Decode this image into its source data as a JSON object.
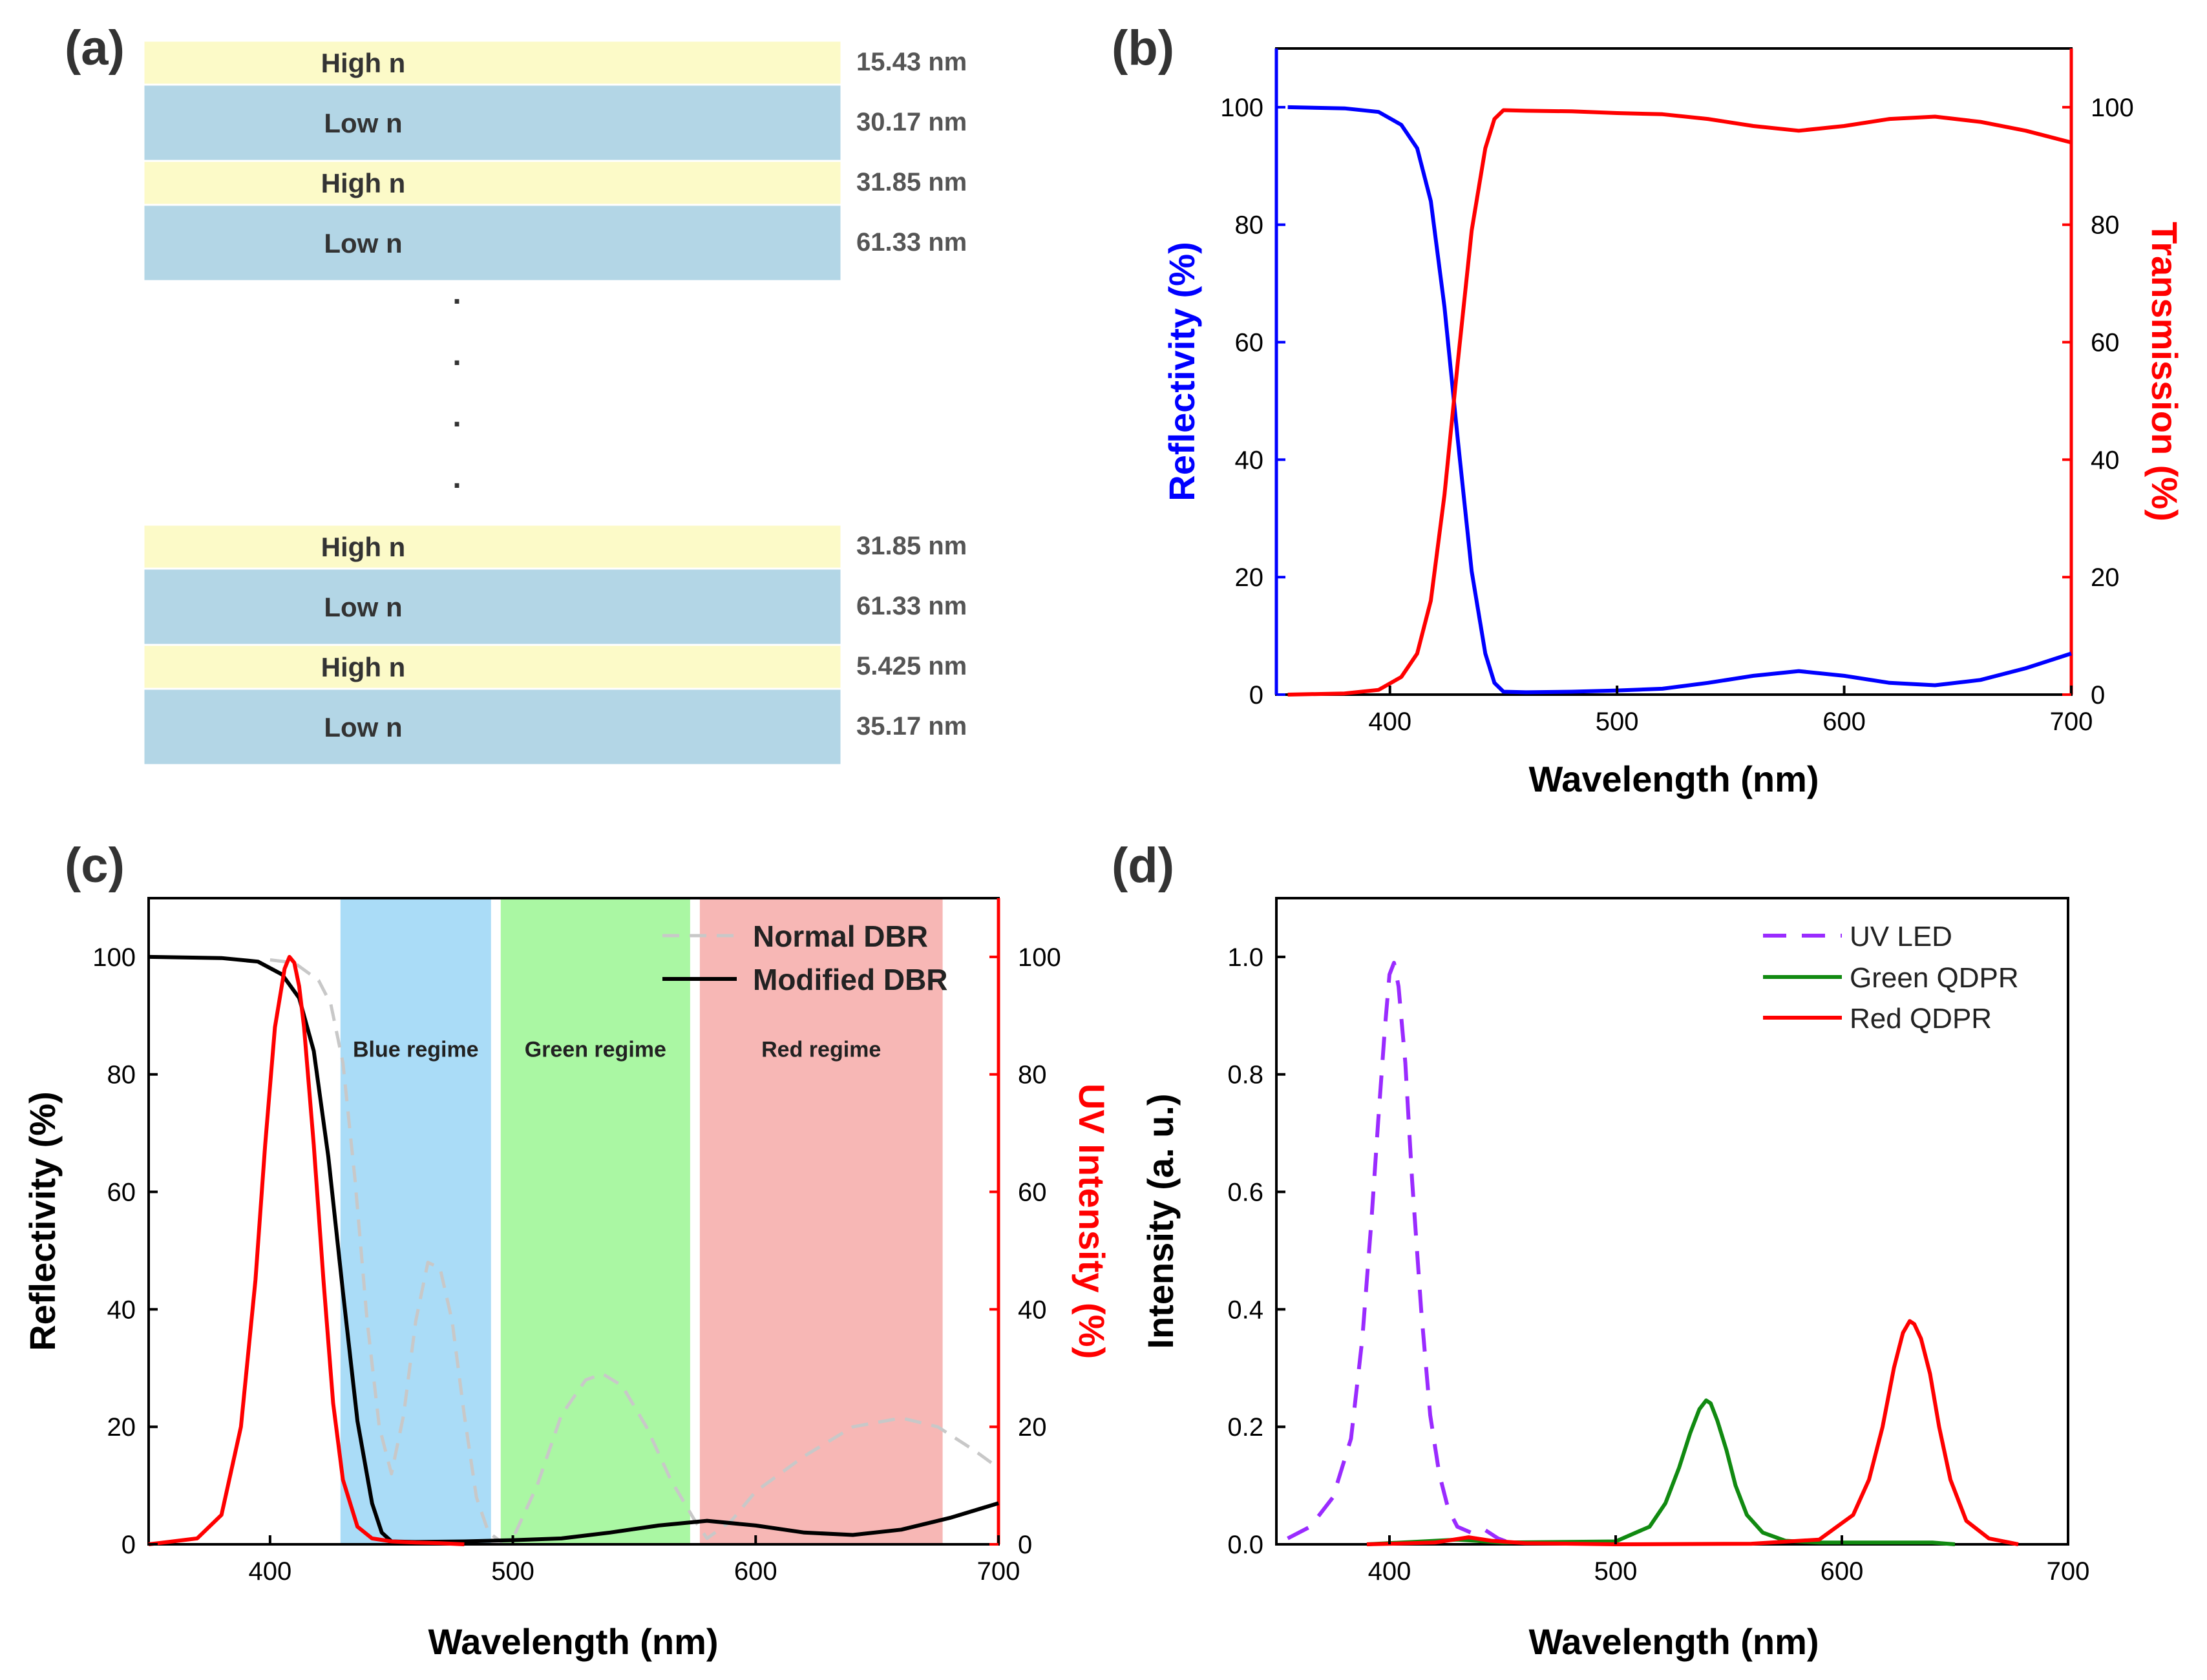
{
  "panels": {
    "a": {
      "label": "(a)",
      "top_layers": [
        {
          "name": "High n",
          "thickness": "15.43 nm",
          "type": "high"
        },
        {
          "name": "Low n",
          "thickness": "30.17 nm",
          "type": "low"
        },
        {
          "name": "High n",
          "thickness": "31.85 nm",
          "type": "high"
        },
        {
          "name": "Low n",
          "thickness": "61.33 nm",
          "type": "low"
        }
      ],
      "ellipsis": ".",
      "bottom_layers": [
        {
          "name": "High n",
          "thickness": "31.85 nm",
          "type": "high"
        },
        {
          "name": "Low n",
          "thickness": "61.33 nm",
          "type": "low"
        },
        {
          "name": "High n",
          "thickness": "5.425 nm",
          "type": "high"
        },
        {
          "name": "Low n",
          "thickness": "35.17 nm",
          "type": "low"
        }
      ],
      "colors": {
        "high": "#fcfac8",
        "low": "#b3d6e6"
      }
    }
  },
  "chart_data": [
    {
      "panel": "(b)",
      "type": "line",
      "xlabel": "Wavelength (nm)",
      "ylabel": "Reflectivity (%)",
      "y2label": "Transmission (%)",
      "xlim": [
        350,
        700
      ],
      "ylim": [
        0,
        110
      ],
      "y2lim": [
        0,
        110
      ],
      "xticks": [
        400,
        500,
        600,
        700
      ],
      "yticks": [
        0,
        20,
        40,
        60,
        80,
        100
      ],
      "y2ticks": [
        0,
        20,
        40,
        60,
        80,
        100
      ],
      "series": [
        {
          "name": "Reflectivity",
          "axis": "left",
          "color": "#0000ff",
          "x": [
            355,
            380,
            395,
            405,
            412,
            418,
            424,
            430,
            436,
            442,
            446,
            450,
            460,
            480,
            500,
            520,
            540,
            560,
            580,
            600,
            620,
            640,
            660,
            680,
            700
          ],
          "y": [
            100,
            99.8,
            99.2,
            97,
            93,
            84,
            66,
            43,
            21,
            7,
            2,
            0.5,
            0.4,
            0.5,
            0.7,
            1,
            2,
            3.2,
            4,
            3.2,
            2,
            1.6,
            2.5,
            4.5,
            7
          ]
        },
        {
          "name": "Transmission",
          "axis": "right",
          "color": "#ff0000",
          "x": [
            355,
            380,
            395,
            405,
            412,
            418,
            424,
            430,
            436,
            442,
            446,
            450,
            460,
            480,
            500,
            520,
            540,
            560,
            580,
            600,
            620,
            640,
            660,
            680,
            700
          ],
          "y": [
            0,
            0.2,
            0.8,
            3,
            7,
            16,
            34,
            57,
            79,
            93,
            98,
            99.5,
            99.4,
            99.3,
            99,
            98.8,
            98,
            96.8,
            96,
            96.8,
            98,
            98.4,
            97.5,
            96,
            94
          ]
        }
      ]
    },
    {
      "panel": "(c)",
      "type": "line",
      "xlabel": "Wavelength (nm)",
      "ylabel": "Reflectivity (%)",
      "y2label": "UV Intensity (%)",
      "xlim": [
        350,
        700
      ],
      "ylim": [
        0,
        110
      ],
      "y2lim": [
        0,
        110
      ],
      "xticks": [
        400,
        500,
        600,
        700
      ],
      "yticks": [
        0,
        20,
        40,
        60,
        80,
        100
      ],
      "y2ticks": [
        0,
        20,
        40,
        60,
        80,
        100
      ],
      "regimes": [
        {
          "label": "Blue regime",
          "x0": 429,
          "x1": 491,
          "color": "#aadcf7"
        },
        {
          "label": "Green regime",
          "x0": 495,
          "x1": 573,
          "color": "#aaf7a3"
        },
        {
          "label": "Red regime",
          "x0": 577,
          "x1": 677,
          "color": "#f7b7b5"
        }
      ],
      "legend": [
        "Normal DBR",
        "Modified DBR"
      ],
      "series": [
        {
          "name": "Normal DBR",
          "axis": "left",
          "color": "#c8c8c8",
          "dashed": true,
          "x": [
            400,
            410,
            420,
            425,
            430,
            435,
            440,
            445,
            450,
            455,
            460,
            465,
            470,
            475,
            480,
            485,
            490,
            495,
            500,
            510,
            520,
            530,
            537,
            545,
            555,
            565,
            575,
            580,
            590,
            600,
            620,
            640,
            660,
            675,
            690,
            700
          ],
          "y": [
            99.5,
            99,
            96,
            92,
            82,
            62,
            38,
            20,
            12,
            22,
            38,
            48,
            47,
            38,
            22,
            8,
            2,
            0.5,
            1,
            10,
            22,
            28,
            29,
            27,
            20,
            11,
            4,
            1,
            4,
            9,
            15,
            20,
            21.5,
            20,
            16,
            13
          ]
        },
        {
          "name": "Modified DBR",
          "axis": "left",
          "color": "#000000",
          "x": [
            350,
            380,
            395,
            405,
            412,
            418,
            424,
            430,
            436,
            442,
            446,
            450,
            460,
            480,
            500,
            520,
            540,
            560,
            580,
            600,
            620,
            640,
            660,
            680,
            700
          ],
          "y": [
            100,
            99.8,
            99.2,
            97,
            93,
            84,
            66,
            43,
            21,
            7,
            2,
            0.5,
            0.4,
            0.5,
            0.7,
            1,
            2,
            3.2,
            4,
            3.2,
            2,
            1.6,
            2.5,
            4.5,
            7
          ]
        },
        {
          "name": "UV LED",
          "axis": "right",
          "color": "#ff0000",
          "x": [
            350,
            370,
            380,
            388,
            394,
            398,
            402,
            406,
            408,
            410,
            412,
            414,
            418,
            422,
            426,
            430,
            436,
            442,
            450,
            460,
            470,
            480
          ],
          "y": [
            0,
            1,
            5,
            20,
            45,
            68,
            88,
            98,
            100,
            99,
            95,
            88,
            68,
            45,
            24,
            11,
            3,
            1,
            0.5,
            0.3,
            0.2,
            0
          ]
        }
      ]
    },
    {
      "panel": "(d)",
      "type": "line",
      "xlabel": "Wavelength (nm)",
      "ylabel": "Intensity (a. u.)",
      "xlim": [
        350,
        700
      ],
      "ylim": [
        0,
        1.1
      ],
      "xticks": [
        400,
        500,
        600,
        700
      ],
      "yticks": [
        0.0,
        0.2,
        0.4,
        0.6,
        0.8,
        1.0
      ],
      "ytick_labels": [
        "0.0",
        "0.2",
        "0.4",
        "0.6",
        "0.8",
        "1.0"
      ],
      "legend": [
        "UV LED",
        "Green QDPR",
        "Red QDPR"
      ],
      "series": [
        {
          "name": "UV LED",
          "color": "#9a2bff",
          "dashed": true,
          "x": [
            355,
            365,
            375,
            383,
            388,
            392,
            395,
            398,
            400,
            402,
            404,
            407,
            410,
            414,
            418,
            422,
            426,
            430,
            436,
            442,
            448,
            455
          ],
          "y": [
            0.01,
            0.03,
            0.08,
            0.18,
            0.35,
            0.55,
            0.72,
            0.88,
            0.97,
            0.99,
            0.95,
            0.82,
            0.62,
            0.4,
            0.22,
            0.12,
            0.06,
            0.03,
            0.02,
            0.025,
            0.01,
            0
          ]
        },
        {
          "name": "Green QDPR",
          "color": "#118a11",
          "x": [
            390,
            430,
            450,
            500,
            515,
            522,
            528,
            533,
            537,
            540,
            542,
            545,
            549,
            553,
            558,
            565,
            575,
            590,
            610,
            640,
            650
          ],
          "y": [
            0,
            0.008,
            0.003,
            0.005,
            0.03,
            0.07,
            0.13,
            0.19,
            0.23,
            0.245,
            0.24,
            0.21,
            0.16,
            0.1,
            0.05,
            0.02,
            0.006,
            0.003,
            0.003,
            0.003,
            0
          ]
        },
        {
          "name": "Red QDPR",
          "color": "#ff0000",
          "x": [
            390,
            420,
            435,
            445,
            460,
            500,
            560,
            590,
            605,
            612,
            618,
            623,
            627,
            630,
            632,
            635,
            639,
            643,
            648,
            655,
            665,
            678
          ],
          "y": [
            0,
            0.003,
            0.012,
            0.006,
            0.002,
            0,
            0.001,
            0.008,
            0.05,
            0.11,
            0.2,
            0.3,
            0.36,
            0.38,
            0.375,
            0.35,
            0.29,
            0.2,
            0.11,
            0.04,
            0.01,
            0
          ]
        }
      ]
    }
  ]
}
